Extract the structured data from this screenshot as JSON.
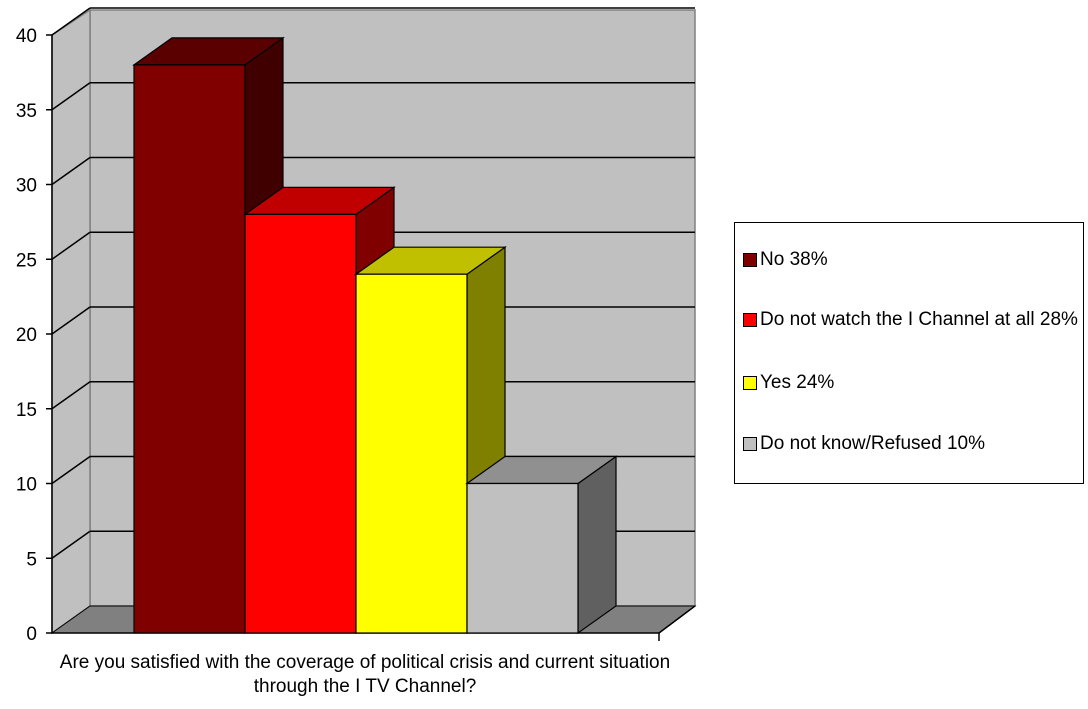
{
  "chart_data": {
    "type": "bar",
    "categories": [
      "No 38%",
      "Do not watch the I Channel at all  28%",
      "Yes 24%",
      "Do not know/Refused 10%"
    ],
    "series": [
      {
        "values": [
          38,
          28,
          24,
          10
        ]
      }
    ],
    "colors": [
      "#800000",
      "#ff0000",
      "#ffff00",
      "#c0c0c0"
    ],
    "xlabel": "Are you satisfied with the coverage of political crisis and current situation through the I TV Channel?",
    "ylabel": "",
    "ylim": [
      0,
      40
    ],
    "yticks": [
      "0",
      "5",
      "10",
      "15",
      "20",
      "25",
      "30",
      "35",
      "40"
    ],
    "grid": true,
    "legend_position": "right",
    "legend": [
      {
        "label": "No 38%",
        "color": "#800000"
      },
      {
        "label": "Do not watch the I Channel at all  28%",
        "color": "#ff0000"
      },
      {
        "label": "Yes 24%",
        "color": "#ffff00"
      },
      {
        "label": "Do not know/Refused 10%",
        "color": "#c0c0c0"
      }
    ]
  }
}
